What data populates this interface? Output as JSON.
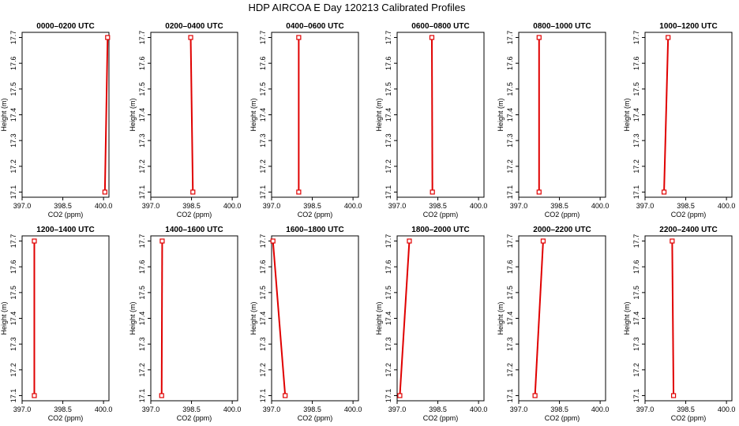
{
  "figure": {
    "title": "HDP AIRCOA E  Day 120213  Calibrated Profiles"
  },
  "colors": {
    "series": "#e00000",
    "frame": "#000000",
    "background": "#ffffff"
  },
  "chart_data": [
    {
      "type": "line",
      "title": "0000–0200 UTC",
      "xlabel": "CO2 (ppm)",
      "ylabel": "Height (m)",
      "xlim": [
        397.0,
        400.2
      ],
      "ylim": [
        17.08,
        17.72
      ],
      "xticks": [
        "397.0",
        "398.5",
        "400.0"
      ],
      "xtick_values": [
        397.0,
        398.5,
        400.0
      ],
      "yticks": [
        "17.1",
        "17.2",
        "17.3",
        "17.4",
        "17.5",
        "17.6",
        "17.7"
      ],
      "ytick_values": [
        17.1,
        17.2,
        17.3,
        17.4,
        17.5,
        17.6,
        17.7
      ],
      "grid": false,
      "series": [
        {
          "x": [
            400.05,
            400.15
          ],
          "y": [
            17.1,
            17.7
          ]
        }
      ]
    },
    {
      "type": "line",
      "title": "0200–0400 UTC",
      "xlabel": "CO2 (ppm)",
      "ylabel": "Height (m)",
      "xlim": [
        397.0,
        400.2
      ],
      "ylim": [
        17.08,
        17.72
      ],
      "xticks": [
        "397.0",
        "398.5",
        "400.0"
      ],
      "xtick_values": [
        397.0,
        398.5,
        400.0
      ],
      "yticks": [
        "17.1",
        "17.2",
        "17.3",
        "17.4",
        "17.5",
        "17.6",
        "17.7"
      ],
      "ytick_values": [
        17.1,
        17.2,
        17.3,
        17.4,
        17.5,
        17.6,
        17.7
      ],
      "grid": false,
      "series": [
        {
          "x": [
            398.55,
            398.47
          ],
          "y": [
            17.1,
            17.7
          ]
        }
      ]
    },
    {
      "type": "line",
      "title": "0400–0600 UTC",
      "xlabel": "CO2 (ppm)",
      "ylabel": "Height (m)",
      "xlim": [
        397.0,
        400.2
      ],
      "ylim": [
        17.08,
        17.72
      ],
      "xticks": [
        "397.0",
        "398.5",
        "400.0"
      ],
      "xtick_values": [
        397.0,
        398.5,
        400.0
      ],
      "yticks": [
        "17.1",
        "17.2",
        "17.3",
        "17.4",
        "17.5",
        "17.6",
        "17.7"
      ],
      "ytick_values": [
        17.1,
        17.2,
        17.3,
        17.4,
        17.5,
        17.6,
        17.7
      ],
      "grid": false,
      "series": [
        {
          "x": [
            398.0,
            398.0
          ],
          "y": [
            17.1,
            17.7
          ]
        }
      ]
    },
    {
      "type": "line",
      "title": "0600–0800 UTC",
      "xlabel": "CO2 (ppm)",
      "ylabel": "Height (m)",
      "xlim": [
        397.0,
        400.2
      ],
      "ylim": [
        17.08,
        17.72
      ],
      "xticks": [
        "397.0",
        "398.5",
        "400.0"
      ],
      "xtick_values": [
        397.0,
        398.5,
        400.0
      ],
      "yticks": [
        "17.1",
        "17.2",
        "17.3",
        "17.4",
        "17.5",
        "17.6",
        "17.7"
      ],
      "ytick_values": [
        17.1,
        17.2,
        17.3,
        17.4,
        17.5,
        17.6,
        17.7
      ],
      "grid": false,
      "series": [
        {
          "x": [
            398.3,
            398.28
          ],
          "y": [
            17.1,
            17.7
          ]
        }
      ]
    },
    {
      "type": "line",
      "title": "0800–1000 UTC",
      "xlabel": "CO2 (ppm)",
      "ylabel": "Height (m)",
      "xlim": [
        397.0,
        400.2
      ],
      "ylim": [
        17.08,
        17.72
      ],
      "xticks": [
        "397.0",
        "398.5",
        "400.0"
      ],
      "xtick_values": [
        397.0,
        398.5,
        400.0
      ],
      "yticks": [
        "17.1",
        "17.2",
        "17.3",
        "17.4",
        "17.5",
        "17.6",
        "17.7"
      ],
      "ytick_values": [
        17.1,
        17.2,
        17.3,
        17.4,
        17.5,
        17.6,
        17.7
      ],
      "grid": false,
      "series": [
        {
          "x": [
            397.75,
            397.75
          ],
          "y": [
            17.1,
            17.7
          ]
        }
      ]
    },
    {
      "type": "line",
      "title": "1000–1200 UTC",
      "xlabel": "CO2 (ppm)",
      "ylabel": "Height (m)",
      "xlim": [
        397.0,
        400.2
      ],
      "ylim": [
        17.08,
        17.72
      ],
      "xticks": [
        "397.0",
        "398.5",
        "400.0"
      ],
      "xtick_values": [
        397.0,
        398.5,
        400.0
      ],
      "yticks": [
        "17.1",
        "17.2",
        "17.3",
        "17.4",
        "17.5",
        "17.6",
        "17.7"
      ],
      "ytick_values": [
        17.1,
        17.2,
        17.3,
        17.4,
        17.5,
        17.6,
        17.7
      ],
      "grid": false,
      "series": [
        {
          "x": [
            397.7,
            397.85
          ],
          "y": [
            17.1,
            17.7
          ]
        }
      ]
    },
    {
      "type": "line",
      "title": "1200–1400 UTC",
      "xlabel": "CO2 (ppm)",
      "ylabel": "Height (m)",
      "xlim": [
        397.0,
        400.2
      ],
      "ylim": [
        17.08,
        17.72
      ],
      "xticks": [
        "397.0",
        "398.5",
        "400.0"
      ],
      "xtick_values": [
        397.0,
        398.5,
        400.0
      ],
      "yticks": [
        "17.1",
        "17.2",
        "17.3",
        "17.4",
        "17.5",
        "17.6",
        "17.7"
      ],
      "ytick_values": [
        17.1,
        17.2,
        17.3,
        17.4,
        17.5,
        17.6,
        17.7
      ],
      "grid": false,
      "series": [
        {
          "x": [
            397.45,
            397.45
          ],
          "y": [
            17.1,
            17.7
          ]
        }
      ]
    },
    {
      "type": "line",
      "title": "1400–1600 UTC",
      "xlabel": "CO2 (ppm)",
      "ylabel": "Height (m)",
      "xlim": [
        397.0,
        400.2
      ],
      "ylim": [
        17.08,
        17.72
      ],
      "xticks": [
        "397.0",
        "398.5",
        "400.0"
      ],
      "xtick_values": [
        397.0,
        398.5,
        400.0
      ],
      "yticks": [
        "17.1",
        "17.2",
        "17.3",
        "17.4",
        "17.5",
        "17.6",
        "17.7"
      ],
      "ytick_values": [
        17.1,
        17.2,
        17.3,
        17.4,
        17.5,
        17.6,
        17.7
      ],
      "grid": false,
      "series": [
        {
          "x": [
            397.4,
            397.42
          ],
          "y": [
            17.1,
            17.7
          ]
        }
      ]
    },
    {
      "type": "line",
      "title": "1600–1800 UTC",
      "xlabel": "CO2 (ppm)",
      "ylabel": "Height (m)",
      "xlim": [
        397.0,
        400.2
      ],
      "ylim": [
        17.08,
        17.72
      ],
      "xticks": [
        "397.0",
        "398.5",
        "400.0"
      ],
      "xtick_values": [
        397.0,
        398.5,
        400.0
      ],
      "yticks": [
        "17.1",
        "17.2",
        "17.3",
        "17.4",
        "17.5",
        "17.6",
        "17.7"
      ],
      "ytick_values": [
        17.1,
        17.2,
        17.3,
        17.4,
        17.5,
        17.6,
        17.7
      ],
      "grid": false,
      "series": [
        {
          "x": [
            397.5,
            397.05
          ],
          "y": [
            17.1,
            17.7
          ]
        }
      ]
    },
    {
      "type": "line",
      "title": "1800–2000 UTC",
      "xlabel": "CO2 (ppm)",
      "ylabel": "Height (m)",
      "xlim": [
        397.0,
        400.2
      ],
      "ylim": [
        17.08,
        17.72
      ],
      "xticks": [
        "397.0",
        "398.5",
        "400.0"
      ],
      "xtick_values": [
        397.0,
        398.5,
        400.0
      ],
      "yticks": [
        "17.1",
        "17.2",
        "17.3",
        "17.4",
        "17.5",
        "17.6",
        "17.7"
      ],
      "ytick_values": [
        17.1,
        17.2,
        17.3,
        17.4,
        17.5,
        17.6,
        17.7
      ],
      "grid": false,
      "series": [
        {
          "x": [
            397.1,
            397.45
          ],
          "y": [
            17.1,
            17.7
          ]
        }
      ]
    },
    {
      "type": "line",
      "title": "2000–2200 UTC",
      "xlabel": "CO2 (ppm)",
      "ylabel": "Height (m)",
      "xlim": [
        397.0,
        400.2
      ],
      "ylim": [
        17.08,
        17.72
      ],
      "xticks": [
        "397.0",
        "398.5",
        "400.0"
      ],
      "xtick_values": [
        397.0,
        398.5,
        400.0
      ],
      "yticks": [
        "17.1",
        "17.2",
        "17.3",
        "17.4",
        "17.5",
        "17.6",
        "17.7"
      ],
      "ytick_values": [
        17.1,
        17.2,
        17.3,
        17.4,
        17.5,
        17.6,
        17.7
      ],
      "grid": false,
      "series": [
        {
          "x": [
            397.6,
            397.9
          ],
          "y": [
            17.1,
            17.7
          ]
        }
      ]
    },
    {
      "type": "line",
      "title": "2200–2400 UTC",
      "xlabel": "CO2 (ppm)",
      "ylabel": "Height (m)",
      "xlim": [
        397.0,
        400.2
      ],
      "ylim": [
        17.08,
        17.72
      ],
      "xticks": [
        "397.0",
        "398.5",
        "400.0"
      ],
      "xtick_values": [
        397.0,
        398.5,
        400.0
      ],
      "yticks": [
        "17.1",
        "17.2",
        "17.3",
        "17.4",
        "17.5",
        "17.6",
        "17.7"
      ],
      "ytick_values": [
        17.1,
        17.2,
        17.3,
        17.4,
        17.5,
        17.6,
        17.7
      ],
      "grid": false,
      "series": [
        {
          "x": [
            398.05,
            398.0
          ],
          "y": [
            17.1,
            17.7
          ]
        }
      ]
    }
  ]
}
